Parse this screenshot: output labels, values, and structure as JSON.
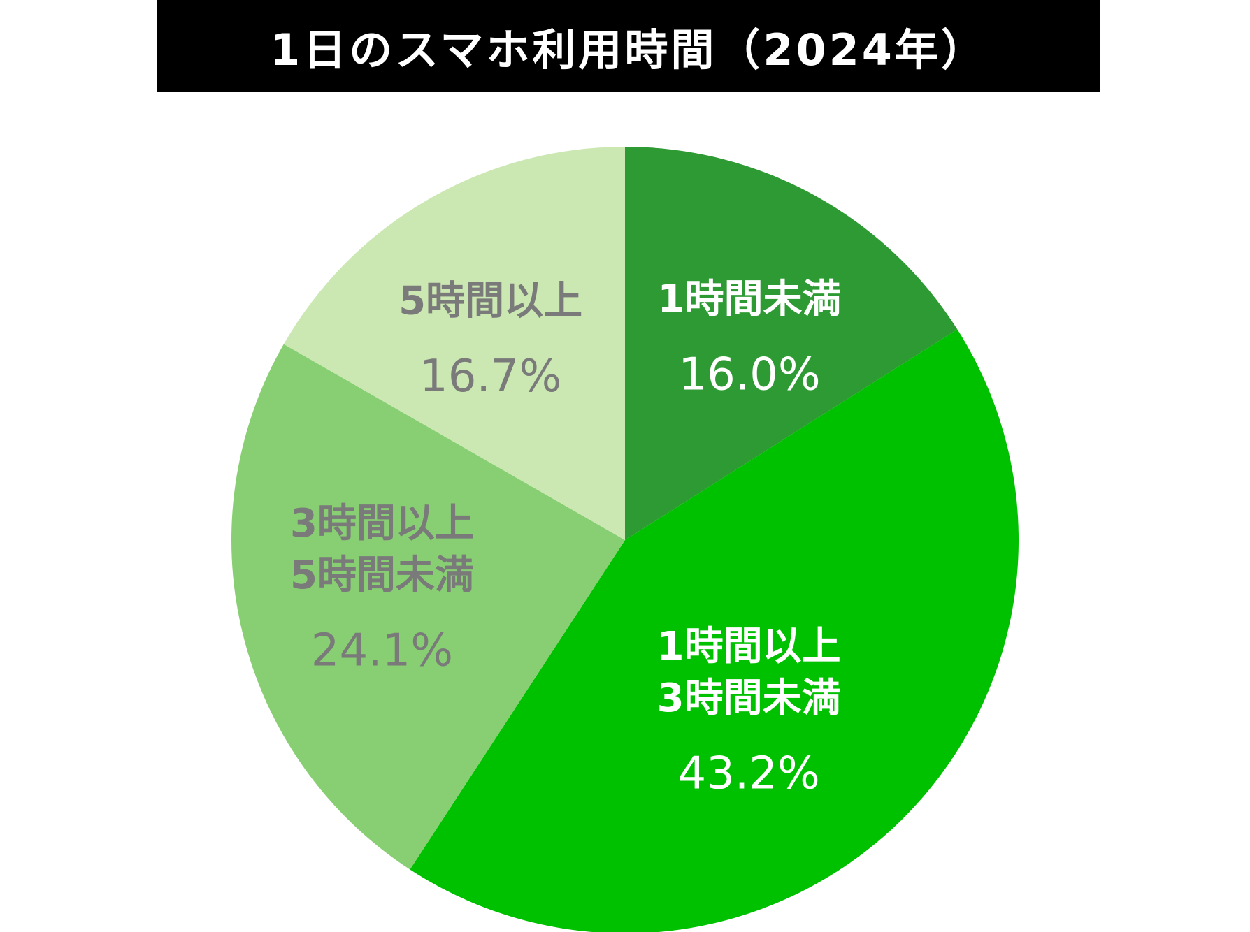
{
  "chart_data": {
    "type": "pie",
    "title": "1日のスマホ利用時間（2024年）",
    "start_angle_deg": 0,
    "direction": "clockwise",
    "slices": [
      {
        "label_lines": [
          "1時間未満"
        ],
        "value": 16.0,
        "value_label": "16.0%",
        "color": "#2e9a33",
        "text_color": "#ffffff"
      },
      {
        "label_lines": [
          "1時間以上",
          "3時間未満"
        ],
        "value": 43.2,
        "value_label": "43.2%",
        "color": "#00c100",
        "text_color": "#ffffff"
      },
      {
        "label_lines": [
          "3時間以上",
          "5時間未満"
        ],
        "value": 24.1,
        "value_label": "24.1%",
        "color": "#88cf73",
        "text_color": "#7a7a7a"
      },
      {
        "label_lines": [
          "5時間以上"
        ],
        "value": 16.7,
        "value_label": "16.7%",
        "color": "#cbe8b3",
        "text_color": "#7a7a7a"
      }
    ]
  }
}
